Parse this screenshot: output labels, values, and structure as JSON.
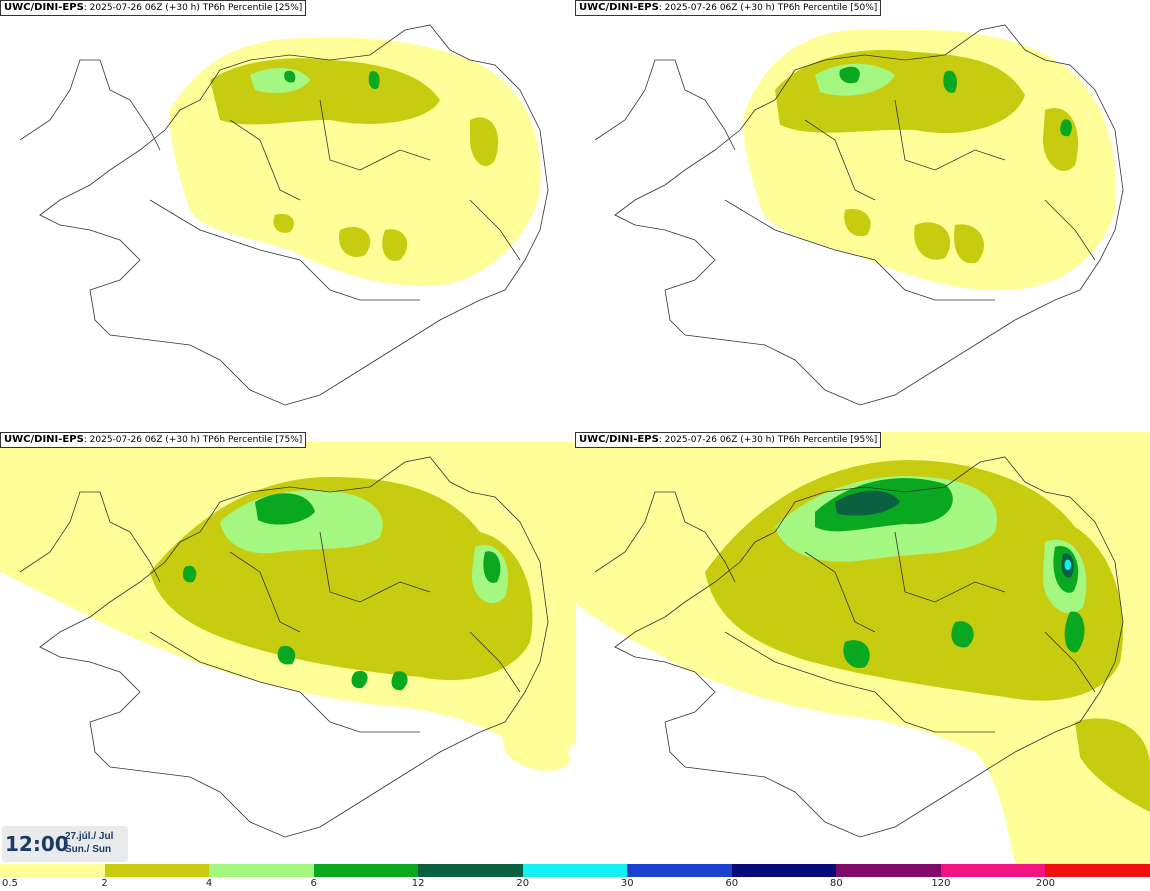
{
  "panels": [
    {
      "model": "UWC/DINI-EPS",
      "run": ": 2025-07-26 06Z (+30 h)",
      "field": "TP6h Percentile [25%]",
      "percentile": 25
    },
    {
      "model": "UWC/DINI-EPS",
      "run": ": 2025-07-26 06Z (+30 h)",
      "field": "TP6h Percentile [50%]",
      "percentile": 50
    },
    {
      "model": "UWC/DINI-EPS",
      "run": ": 2025-07-26 06Z (+30 h)",
      "field": "TP6h Percentile [75%]",
      "percentile": 75
    },
    {
      "model": "UWC/DINI-EPS",
      "run": ": 2025-07-26 06Z (+30 h)",
      "field": "TP6h Percentile [95%]",
      "percentile": 95
    }
  ],
  "valid": {
    "time": "12:00",
    "date_line1": "27.júl./ Jul",
    "date_line2": "Sun./ Sun"
  },
  "legend": {
    "ticks": [
      "0.5",
      "2",
      "4",
      "6",
      "12",
      "20",
      "30",
      "60",
      "80",
      "120",
      "200"
    ],
    "colors": [
      "#ffff9a",
      "#c8cc10",
      "#a4f780",
      "#0aa820",
      "#0a6040",
      "#14f0f0",
      "#1e40d0",
      "#0a0a78",
      "#800a6a",
      "#f01480",
      "#f01010"
    ]
  }
}
